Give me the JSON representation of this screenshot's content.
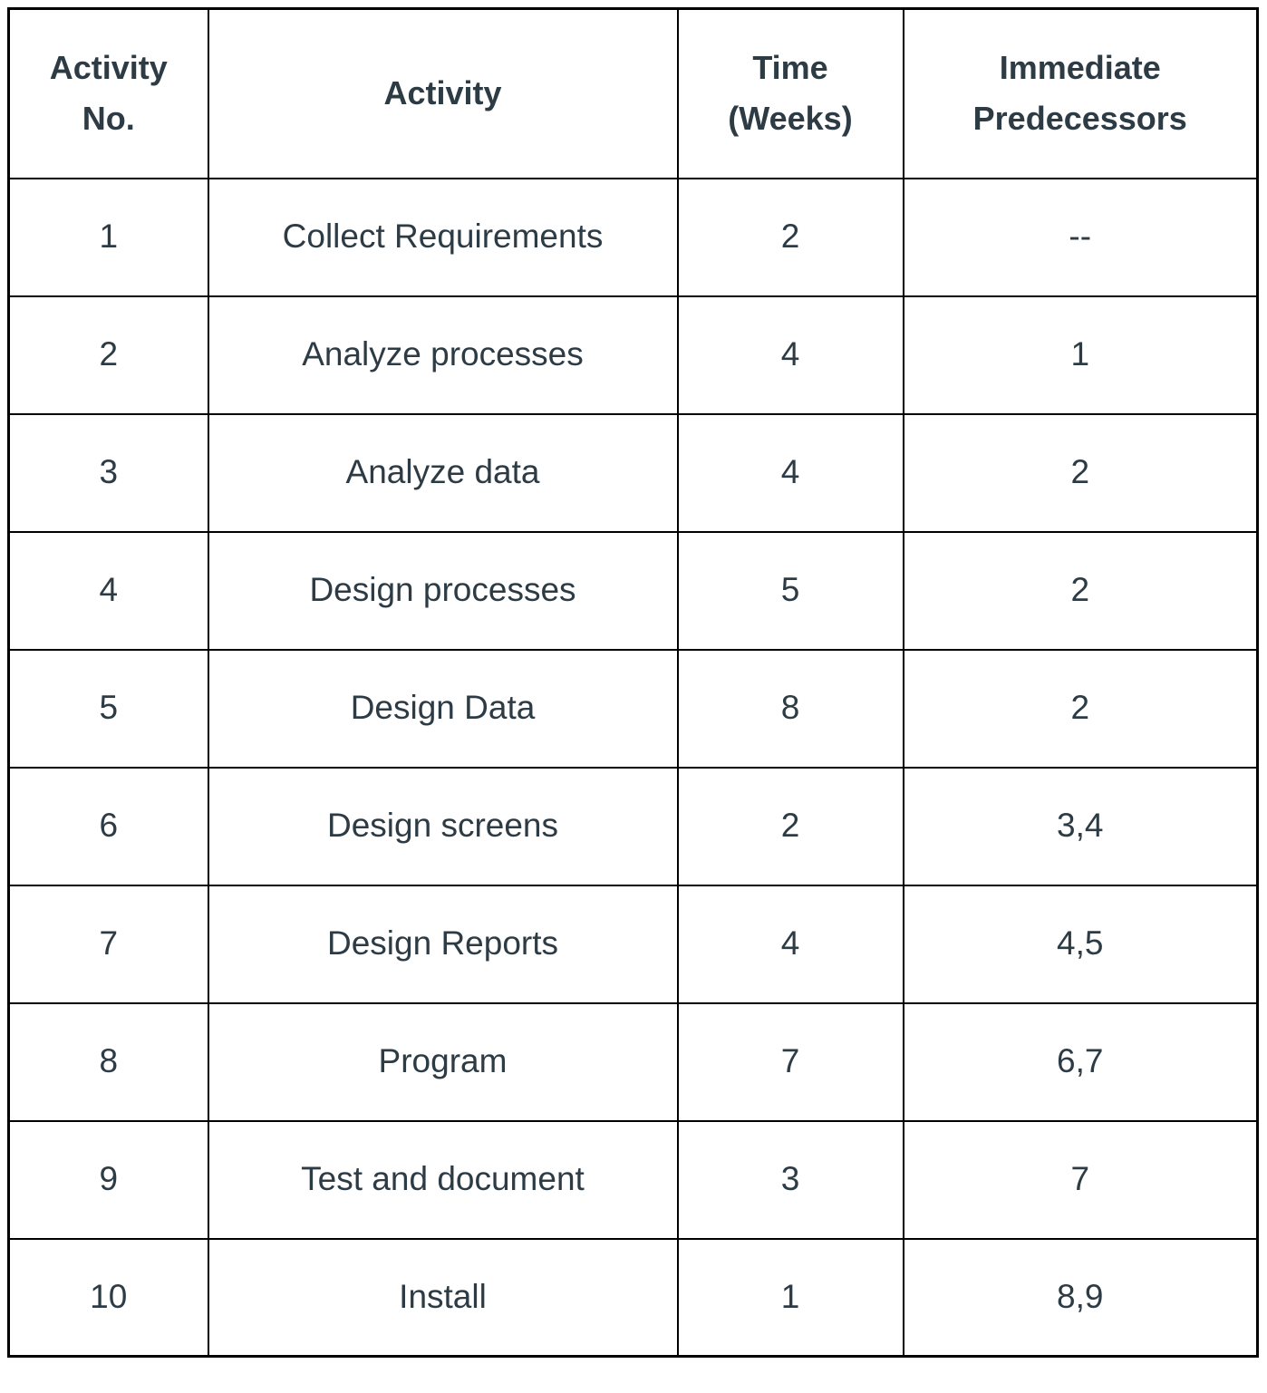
{
  "table": {
    "headers": [
      {
        "lines": [
          "Activity",
          "No."
        ]
      },
      {
        "lines": [
          "Activity"
        ]
      },
      {
        "lines": [
          "Time",
          "(Weeks)"
        ]
      },
      {
        "lines": [
          "Immediate",
          "Predecessors"
        ]
      }
    ],
    "rows": [
      {
        "no": "1",
        "activity": "Collect Requirements",
        "time": "2",
        "predecessors": "--"
      },
      {
        "no": "2",
        "activity": "Analyze processes",
        "time": "4",
        "predecessors": "1"
      },
      {
        "no": "3",
        "activity": "Analyze data",
        "time": "4",
        "predecessors": "2"
      },
      {
        "no": "4",
        "activity": "Design processes",
        "time": "5",
        "predecessors": "2"
      },
      {
        "no": "5",
        "activity": "Design Data",
        "time": "8",
        "predecessors": "2"
      },
      {
        "no": "6",
        "activity": "Design screens",
        "time": "2",
        "predecessors": "3,4"
      },
      {
        "no": "7",
        "activity": "Design Reports",
        "time": "4",
        "predecessors": "4,5"
      },
      {
        "no": "8",
        "activity": "Program",
        "time": "7",
        "predecessors": "6,7"
      },
      {
        "no": "9",
        "activity": "Test and document",
        "time": "3",
        "predecessors": "7"
      },
      {
        "no": "10",
        "activity": "Install",
        "time": "1",
        "predecessors": "8,9"
      }
    ]
  },
  "colors": {
    "text": "#2D3B45",
    "border": "#000000",
    "background": "#FFFFFF"
  }
}
